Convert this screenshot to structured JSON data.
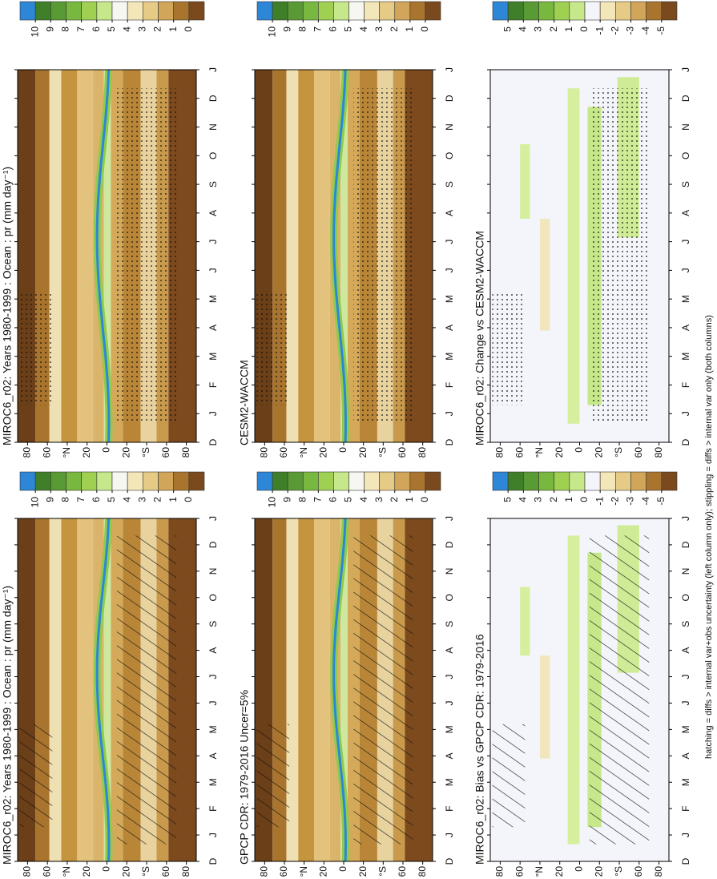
{
  "chart_data": [
    {
      "type": "contour",
      "title": "MIROC6_r02: Years 1980-1999 : Ocean : pr (mm day⁻¹)",
      "field": "mean",
      "overlay": "hatch",
      "categories": [
        "D",
        "J",
        "F",
        "M",
        "A",
        "M",
        "J",
        "J",
        "A",
        "S",
        "O",
        "N",
        "D",
        "J"
      ],
      "ylim": [
        -90,
        90
      ],
      "yticks": [
        80,
        60,
        {
          "value": 40,
          "label": "°N"
        },
        20,
        0,
        {
          "value": -20,
          "label": "20"
        },
        {
          "value": -40,
          "label": "°S"
        },
        {
          "value": -60,
          "label": "60"
        },
        {
          "value": -80,
          "label": "80"
        }
      ],
      "colorbar": {
        "levels": [
          10,
          9,
          8,
          7,
          6,
          5,
          4,
          3,
          2,
          1,
          0
        ],
        "colors": [
          "#2e86d6",
          "#3f7f2a",
          "#5a9a34",
          "#78b83e",
          "#9fd052",
          "#c7e88a",
          "#f7f7f2",
          "#f3e6b9",
          "#e6cb86",
          "#d1a55a",
          "#a9742e",
          "#7a4a1e"
        ]
      }
    },
    {
      "type": "contour",
      "title": "MIROC6_r02: Years 1980-1999 : Ocean : pr (mm day⁻¹)",
      "field": "mean",
      "overlay": "stipple",
      "categories": [
        "D",
        "J",
        "F",
        "M",
        "A",
        "M",
        "J",
        "J",
        "A",
        "S",
        "O",
        "N",
        "D",
        "J"
      ],
      "ylim": [
        -90,
        90
      ],
      "yticks": [
        80,
        60,
        {
          "value": 40,
          "label": "°N"
        },
        20,
        0,
        {
          "value": -20,
          "label": "20"
        },
        {
          "value": -40,
          "label": "°S"
        },
        {
          "value": -60,
          "label": "60"
        },
        {
          "value": -80,
          "label": "80"
        }
      ],
      "colorbar": {
        "levels": [
          10,
          9,
          8,
          7,
          6,
          5,
          4,
          3,
          2,
          1,
          0
        ],
        "colors": [
          "#2e86d6",
          "#3f7f2a",
          "#5a9a34",
          "#78b83e",
          "#9fd052",
          "#c7e88a",
          "#f7f7f2",
          "#f3e6b9",
          "#e6cb86",
          "#d1a55a",
          "#a9742e",
          "#7a4a1e"
        ]
      }
    },
    {
      "type": "contour",
      "title": "GPCP CDR: 1979-2016 Uncer=5%",
      "field": "mean",
      "overlay": "hatch",
      "categories": [
        "D",
        "J",
        "F",
        "M",
        "A",
        "M",
        "J",
        "J",
        "A",
        "S",
        "O",
        "N",
        "D",
        "J"
      ],
      "ylim": [
        -90,
        90
      ],
      "yticks": [
        80,
        60,
        {
          "value": 40,
          "label": "°N"
        },
        20,
        0,
        {
          "value": -20,
          "label": "20"
        },
        {
          "value": -40,
          "label": "°S"
        },
        {
          "value": -60,
          "label": "60"
        },
        {
          "value": -80,
          "label": "80"
        }
      ],
      "colorbar": {
        "levels": [
          10,
          9,
          8,
          7,
          6,
          5,
          4,
          3,
          2,
          1,
          0
        ],
        "colors": [
          "#2e86d6",
          "#3f7f2a",
          "#5a9a34",
          "#78b83e",
          "#9fd052",
          "#c7e88a",
          "#f7f7f2",
          "#f3e6b9",
          "#e6cb86",
          "#d1a55a",
          "#a9742e",
          "#7a4a1e"
        ]
      }
    },
    {
      "type": "contour",
      "title": "CESM2-WACCM",
      "field": "mean",
      "overlay": "stipple",
      "categories": [
        "D",
        "J",
        "F",
        "M",
        "A",
        "M",
        "J",
        "J",
        "A",
        "S",
        "O",
        "N",
        "D",
        "J"
      ],
      "ylim": [
        -90,
        90
      ],
      "yticks": [
        80,
        60,
        {
          "value": 40,
          "label": "°N"
        },
        20,
        0,
        {
          "value": -20,
          "label": "20"
        },
        {
          "value": -40,
          "label": "°S"
        },
        {
          "value": -60,
          "label": "60"
        },
        {
          "value": -80,
          "label": "80"
        }
      ],
      "colorbar": {
        "levels": [
          10,
          9,
          8,
          7,
          6,
          5,
          4,
          3,
          2,
          1,
          0
        ],
        "colors": [
          "#2e86d6",
          "#3f7f2a",
          "#5a9a34",
          "#78b83e",
          "#9fd052",
          "#c7e88a",
          "#f7f7f2",
          "#f3e6b9",
          "#e6cb86",
          "#d1a55a",
          "#a9742e",
          "#7a4a1e"
        ]
      }
    },
    {
      "type": "contour",
      "title": "MIROC6_r02: Bias vs GPCP CDR: 1979-2016",
      "field": "diff",
      "overlay": "hatch",
      "categories": [
        "D",
        "J",
        "F",
        "M",
        "A",
        "M",
        "J",
        "J",
        "A",
        "S",
        "O",
        "N",
        "D",
        "J"
      ],
      "ylim": [
        -90,
        90
      ],
      "yticks": [
        80,
        60,
        {
          "value": 40,
          "label": "°N"
        },
        20,
        0,
        {
          "value": -20,
          "label": "20"
        },
        {
          "value": -40,
          "label": "°S"
        },
        {
          "value": -60,
          "label": "60"
        },
        {
          "value": -80,
          "label": "80"
        }
      ],
      "colorbar": {
        "levels": [
          5,
          4,
          3,
          2,
          1,
          0,
          -1,
          -2,
          -3,
          -4,
          -5
        ],
        "colors": [
          "#2e86d6",
          "#3f7f2a",
          "#5a9a34",
          "#78b83e",
          "#9fd052",
          "#c7e88a",
          "#f4f5fb",
          "#f3e6b9",
          "#e6cb86",
          "#d1a55a",
          "#a9742e",
          "#7a4a1e"
        ]
      }
    },
    {
      "type": "contour",
      "title": "MIROC6_r02: Change vs CESM2-WACCM",
      "field": "diff",
      "overlay": "stipple",
      "categories": [
        "D",
        "J",
        "F",
        "M",
        "A",
        "M",
        "J",
        "J",
        "A",
        "S",
        "O",
        "N",
        "D",
        "J"
      ],
      "ylim": [
        -90,
        90
      ],
      "yticks": [
        80,
        60,
        {
          "value": 40,
          "label": "°N"
        },
        20,
        0,
        {
          "value": -20,
          "label": "20"
        },
        {
          "value": -40,
          "label": "°S"
        },
        {
          "value": -60,
          "label": "60"
        },
        {
          "value": -80,
          "label": "80"
        }
      ],
      "colorbar": {
        "levels": [
          5,
          4,
          3,
          2,
          1,
          0,
          -1,
          -2,
          -3,
          -4,
          -5
        ],
        "colors": [
          "#2e86d6",
          "#3f7f2a",
          "#5a9a34",
          "#78b83e",
          "#9fd052",
          "#c7e88a",
          "#f4f5fb",
          "#f3e6b9",
          "#e6cb86",
          "#d1a55a",
          "#a9742e",
          "#7a4a1e"
        ]
      }
    }
  ],
  "footnote": "hatching = diffs > internal var+obs uncertainty (left column only); stippling = diffs > internal var only (both columns)"
}
